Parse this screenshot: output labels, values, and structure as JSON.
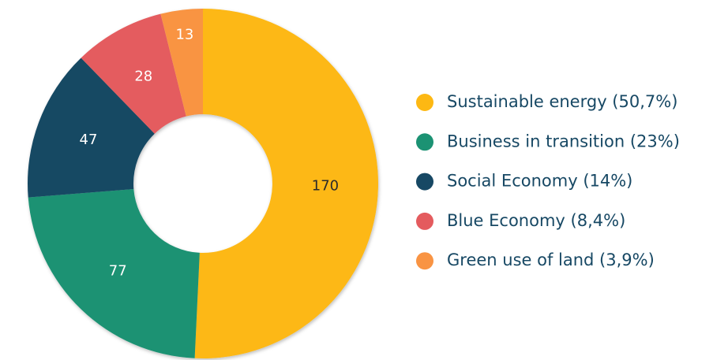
{
  "chart_data": {
    "type": "donut",
    "categories": [
      "Sustainable energy (50,7%)",
      "Business in transition (23%)",
      "Social Economy (14%)",
      "Blue Economy (8,4%)",
      "Green use of land (3,9%)"
    ],
    "values": [
      170,
      77,
      47,
      28,
      13
    ],
    "colors": [
      "#fdb813",
      "#1b9273",
      "#174864",
      "#e45b5e",
      "#f99443"
    ],
    "value_label_colors": [
      "#2b2b2b",
      "#ffffff",
      "#ffffff",
      "#ffffff",
      "#ffffff"
    ],
    "legend": "right"
  }
}
